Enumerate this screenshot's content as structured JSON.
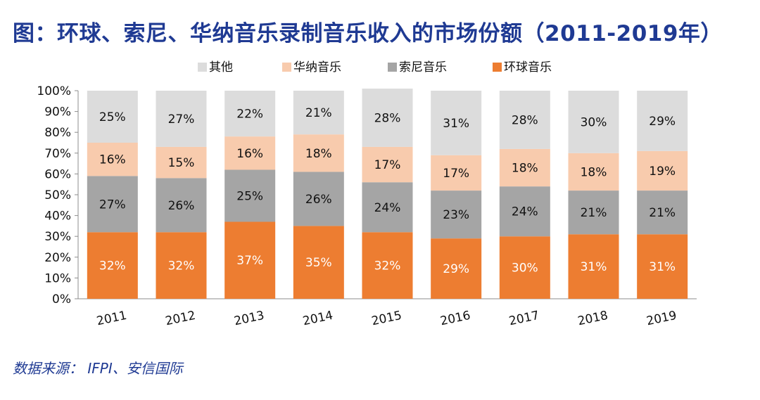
{
  "title": "图：环球、索尼、华纳音乐录制音乐收入的市场份额（2011-2019年）",
  "source": "数据来源： IFPI、安信国际",
  "chart_data": {
    "type": "bar",
    "stacked": true,
    "percent": true,
    "categories": [
      "2011",
      "2012",
      "2013",
      "2014",
      "2015",
      "2016",
      "2017",
      "2018",
      "2019"
    ],
    "series": [
      {
        "name": "环球音乐",
        "color": "#ed7d31",
        "label_color": "#ffffff",
        "values": [
          32,
          32,
          37,
          35,
          32,
          29,
          30,
          31,
          31
        ]
      },
      {
        "name": "索尼音乐",
        "color": "#a5a5a5",
        "label_color": "#111111",
        "values": [
          27,
          26,
          25,
          26,
          24,
          23,
          24,
          21,
          21
        ]
      },
      {
        "name": "华纳音乐",
        "color": "#f8cbad",
        "label_color": "#111111",
        "values": [
          16,
          15,
          16,
          18,
          17,
          17,
          18,
          18,
          19
        ]
      },
      {
        "name": "其他",
        "color": "#dcdcdc",
        "label_color": "#111111",
        "values": [
          25,
          27,
          22,
          21,
          28,
          31,
          28,
          30,
          29
        ]
      }
    ],
    "legend_order": [
      "其他",
      "华纳音乐",
      "索尼音乐",
      "环球音乐"
    ],
    "yticks": [
      "0%",
      "10%",
      "20%",
      "30%",
      "40%",
      "50%",
      "60%",
      "70%",
      "80%",
      "90%",
      "100%"
    ],
    "ylim": [
      0,
      100
    ],
    "legend_position": "top"
  }
}
